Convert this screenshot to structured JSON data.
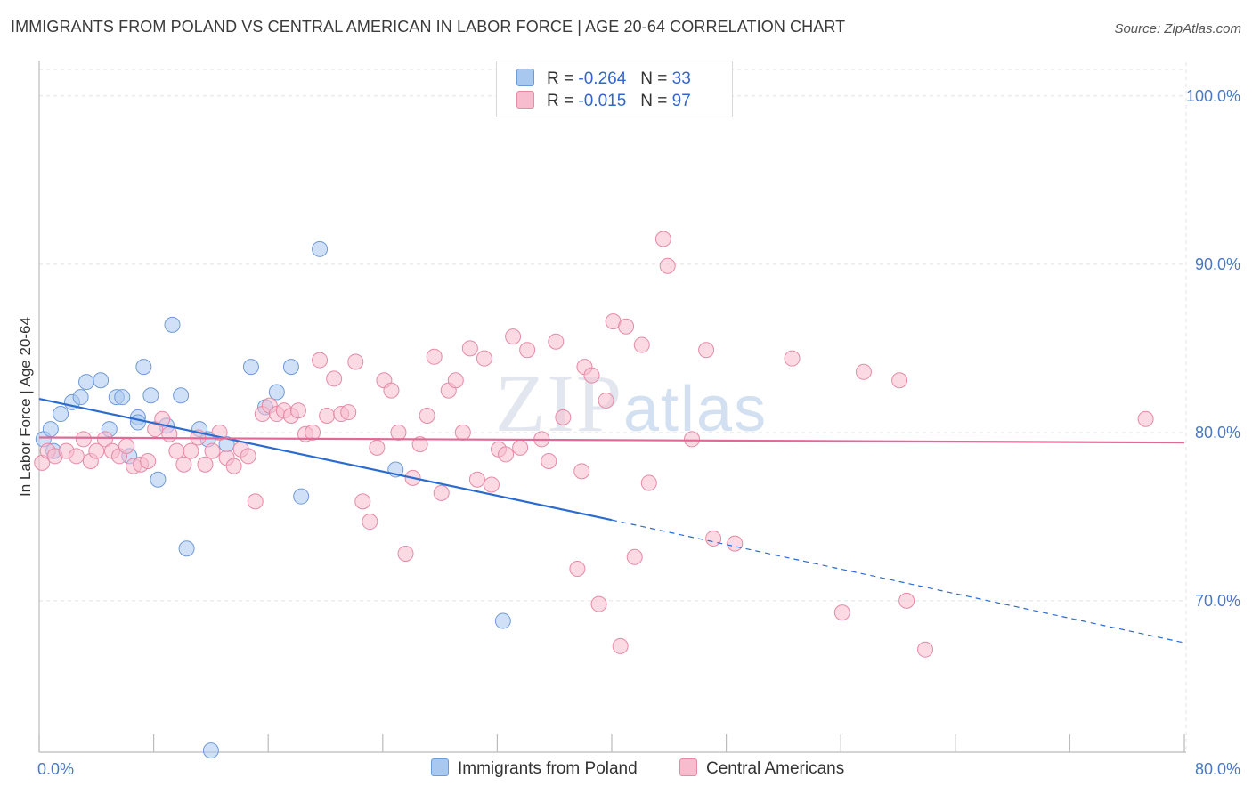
{
  "title": "IMMIGRANTS FROM POLAND VS CENTRAL AMERICAN IN LABOR FORCE | AGE 20-64 CORRELATION CHART",
  "source": "Source: ZipAtlas.com",
  "watermark": {
    "zip": "ZIP",
    "atlas": "atlas"
  },
  "legend": {
    "rows": [
      {
        "r_label": "R =",
        "r_value": "-0.264",
        "n_label": "N =",
        "n_value": "33",
        "color": "#a9c8f0",
        "stroke": "#6f9ad8"
      },
      {
        "r_label": "R =",
        "r_value": "-0.015",
        "n_label": "N =",
        "n_value": "97",
        "color": "#f7bccd",
        "stroke": "#e68aa6"
      }
    ]
  },
  "chart_data": {
    "type": "scatter",
    "title": "IMMIGRANTS FROM POLAND VS CENTRAL AMERICAN IN LABOR FORCE | AGE 20-64 CORRELATION CHART",
    "xlabel": "",
    "ylabel": "In Labor Force | Age 20-64",
    "xlim": [
      0,
      80
    ],
    "ylim": [
      61,
      102
    ],
    "x_tick_labels": [
      {
        "value": 0,
        "label": "0.0%"
      },
      {
        "value": 80,
        "label": "80.0%"
      }
    ],
    "y_tick_labels": [
      {
        "value": 100,
        "label": "100.0%"
      },
      {
        "value": 90,
        "label": "90.0%"
      },
      {
        "value": 80,
        "label": "80.0%"
      },
      {
        "value": 70,
        "label": "70.0%"
      }
    ],
    "grid": true,
    "legend_position": "top-center",
    "series": [
      {
        "name": "Immigrants from Poland",
        "color": "#a9c8f0",
        "stroke": "#6f9ad8",
        "trend_color": "#2a6bd0",
        "trend": {
          "x0": 0,
          "y0": 82.0,
          "x1": 40,
          "y1": 74.8,
          "dashed_to_x": 80,
          "dashed_to_y": 67.5
        },
        "points": [
          [
            0.3,
            79.6
          ],
          [
            0.8,
            80.2
          ],
          [
            1.5,
            81.1
          ],
          [
            2.3,
            81.8
          ],
          [
            2.9,
            82.1
          ],
          [
            3.3,
            83.0
          ],
          [
            4.3,
            83.1
          ],
          [
            4.9,
            80.2
          ],
          [
            5.4,
            82.1
          ],
          [
            5.8,
            82.1
          ],
          [
            6.3,
            78.6
          ],
          [
            6.9,
            80.9
          ],
          [
            7.3,
            83.9
          ],
          [
            7.8,
            82.2
          ],
          [
            8.3,
            77.2
          ],
          [
            8.9,
            80.4
          ],
          [
            9.3,
            86.4
          ],
          [
            9.9,
            82.2
          ],
          [
            10.3,
            73.1
          ],
          [
            11.2,
            80.2
          ],
          [
            11.8,
            79.6
          ],
          [
            13.1,
            79.3
          ],
          [
            14.8,
            83.9
          ],
          [
            15.8,
            81.5
          ],
          [
            16.6,
            82.4
          ],
          [
            17.6,
            83.9
          ],
          [
            18.3,
            76.2
          ],
          [
            19.6,
            90.9
          ],
          [
            24.9,
            77.8
          ],
          [
            32.4,
            68.8
          ],
          [
            12.0,
            61.1
          ],
          [
            1.0,
            78.9
          ],
          [
            6.9,
            80.6
          ]
        ]
      },
      {
        "name": "Central Americans",
        "color": "#f7bccd",
        "stroke": "#e68aa6",
        "trend_color": "#e06a95",
        "trend": {
          "x0": 0,
          "y0": 79.7,
          "x1": 80,
          "y1": 79.4
        },
        "points": [
          [
            0.2,
            78.2
          ],
          [
            0.6,
            78.9
          ],
          [
            1.1,
            78.6
          ],
          [
            1.9,
            78.9
          ],
          [
            2.6,
            78.6
          ],
          [
            3.1,
            79.6
          ],
          [
            3.6,
            78.3
          ],
          [
            4.0,
            78.9
          ],
          [
            4.6,
            79.6
          ],
          [
            5.1,
            78.9
          ],
          [
            5.6,
            78.6
          ],
          [
            6.1,
            79.2
          ],
          [
            6.6,
            78.0
          ],
          [
            7.1,
            78.1
          ],
          [
            7.6,
            78.3
          ],
          [
            8.1,
            80.2
          ],
          [
            8.6,
            80.8
          ],
          [
            9.1,
            79.9
          ],
          [
            9.6,
            78.9
          ],
          [
            10.1,
            78.1
          ],
          [
            10.6,
            78.9
          ],
          [
            11.1,
            79.7
          ],
          [
            11.6,
            78.1
          ],
          [
            12.1,
            78.9
          ],
          [
            12.6,
            80.0
          ],
          [
            13.1,
            78.5
          ],
          [
            13.6,
            78.0
          ],
          [
            14.1,
            79.0
          ],
          [
            14.6,
            78.6
          ],
          [
            15.1,
            75.9
          ],
          [
            15.6,
            81.1
          ],
          [
            16.1,
            81.6
          ],
          [
            16.6,
            81.1
          ],
          [
            17.1,
            81.3
          ],
          [
            17.6,
            81.0
          ],
          [
            18.1,
            81.3
          ],
          [
            18.6,
            79.9
          ],
          [
            19.1,
            80.0
          ],
          [
            19.6,
            84.3
          ],
          [
            20.1,
            81.0
          ],
          [
            20.6,
            83.2
          ],
          [
            21.1,
            81.1
          ],
          [
            21.6,
            81.2
          ],
          [
            22.1,
            84.2
          ],
          [
            22.6,
            75.9
          ],
          [
            23.1,
            74.7
          ],
          [
            23.6,
            79.1
          ],
          [
            24.1,
            83.1
          ],
          [
            24.6,
            82.5
          ],
          [
            25.1,
            80.0
          ],
          [
            25.6,
            72.8
          ],
          [
            26.1,
            77.3
          ],
          [
            26.6,
            79.3
          ],
          [
            27.1,
            81.0
          ],
          [
            27.6,
            84.5
          ],
          [
            28.1,
            76.4
          ],
          [
            28.6,
            82.5
          ],
          [
            29.1,
            83.1
          ],
          [
            29.6,
            80.0
          ],
          [
            30.1,
            85.0
          ],
          [
            30.6,
            77.2
          ],
          [
            31.1,
            84.4
          ],
          [
            31.6,
            76.9
          ],
          [
            32.1,
            79.0
          ],
          [
            32.6,
            78.7
          ],
          [
            33.1,
            85.7
          ],
          [
            33.6,
            79.1
          ],
          [
            34.1,
            84.9
          ],
          [
            35.1,
            79.6
          ],
          [
            35.6,
            78.3
          ],
          [
            36.1,
            85.4
          ],
          [
            36.6,
            80.9
          ],
          [
            37.6,
            71.9
          ],
          [
            37.9,
            77.7
          ],
          [
            38.1,
            83.9
          ],
          [
            38.6,
            83.4
          ],
          [
            39.1,
            69.8
          ],
          [
            39.6,
            81.9
          ],
          [
            40.1,
            86.6
          ],
          [
            40.6,
            67.3
          ],
          [
            41.0,
            86.3
          ],
          [
            41.6,
            72.6
          ],
          [
            42.1,
            85.2
          ],
          [
            42.6,
            77.0
          ],
          [
            43.6,
            91.5
          ],
          [
            43.9,
            89.9
          ],
          [
            45.6,
            79.6
          ],
          [
            46.6,
            84.9
          ],
          [
            47.1,
            73.7
          ],
          [
            48.6,
            73.4
          ],
          [
            52.6,
            84.4
          ],
          [
            56.1,
            69.3
          ],
          [
            57.6,
            83.6
          ],
          [
            60.1,
            83.1
          ],
          [
            60.6,
            70.0
          ],
          [
            61.9,
            67.1
          ],
          [
            77.3,
            80.8
          ]
        ]
      }
    ]
  },
  "bottom_legend": {
    "items": [
      {
        "label": "Immigrants from Poland",
        "color": "#a9c8f0",
        "stroke": "#6f9ad8"
      },
      {
        "label": "Central Americans",
        "color": "#f7bccd",
        "stroke": "#e68aa6"
      }
    ]
  }
}
